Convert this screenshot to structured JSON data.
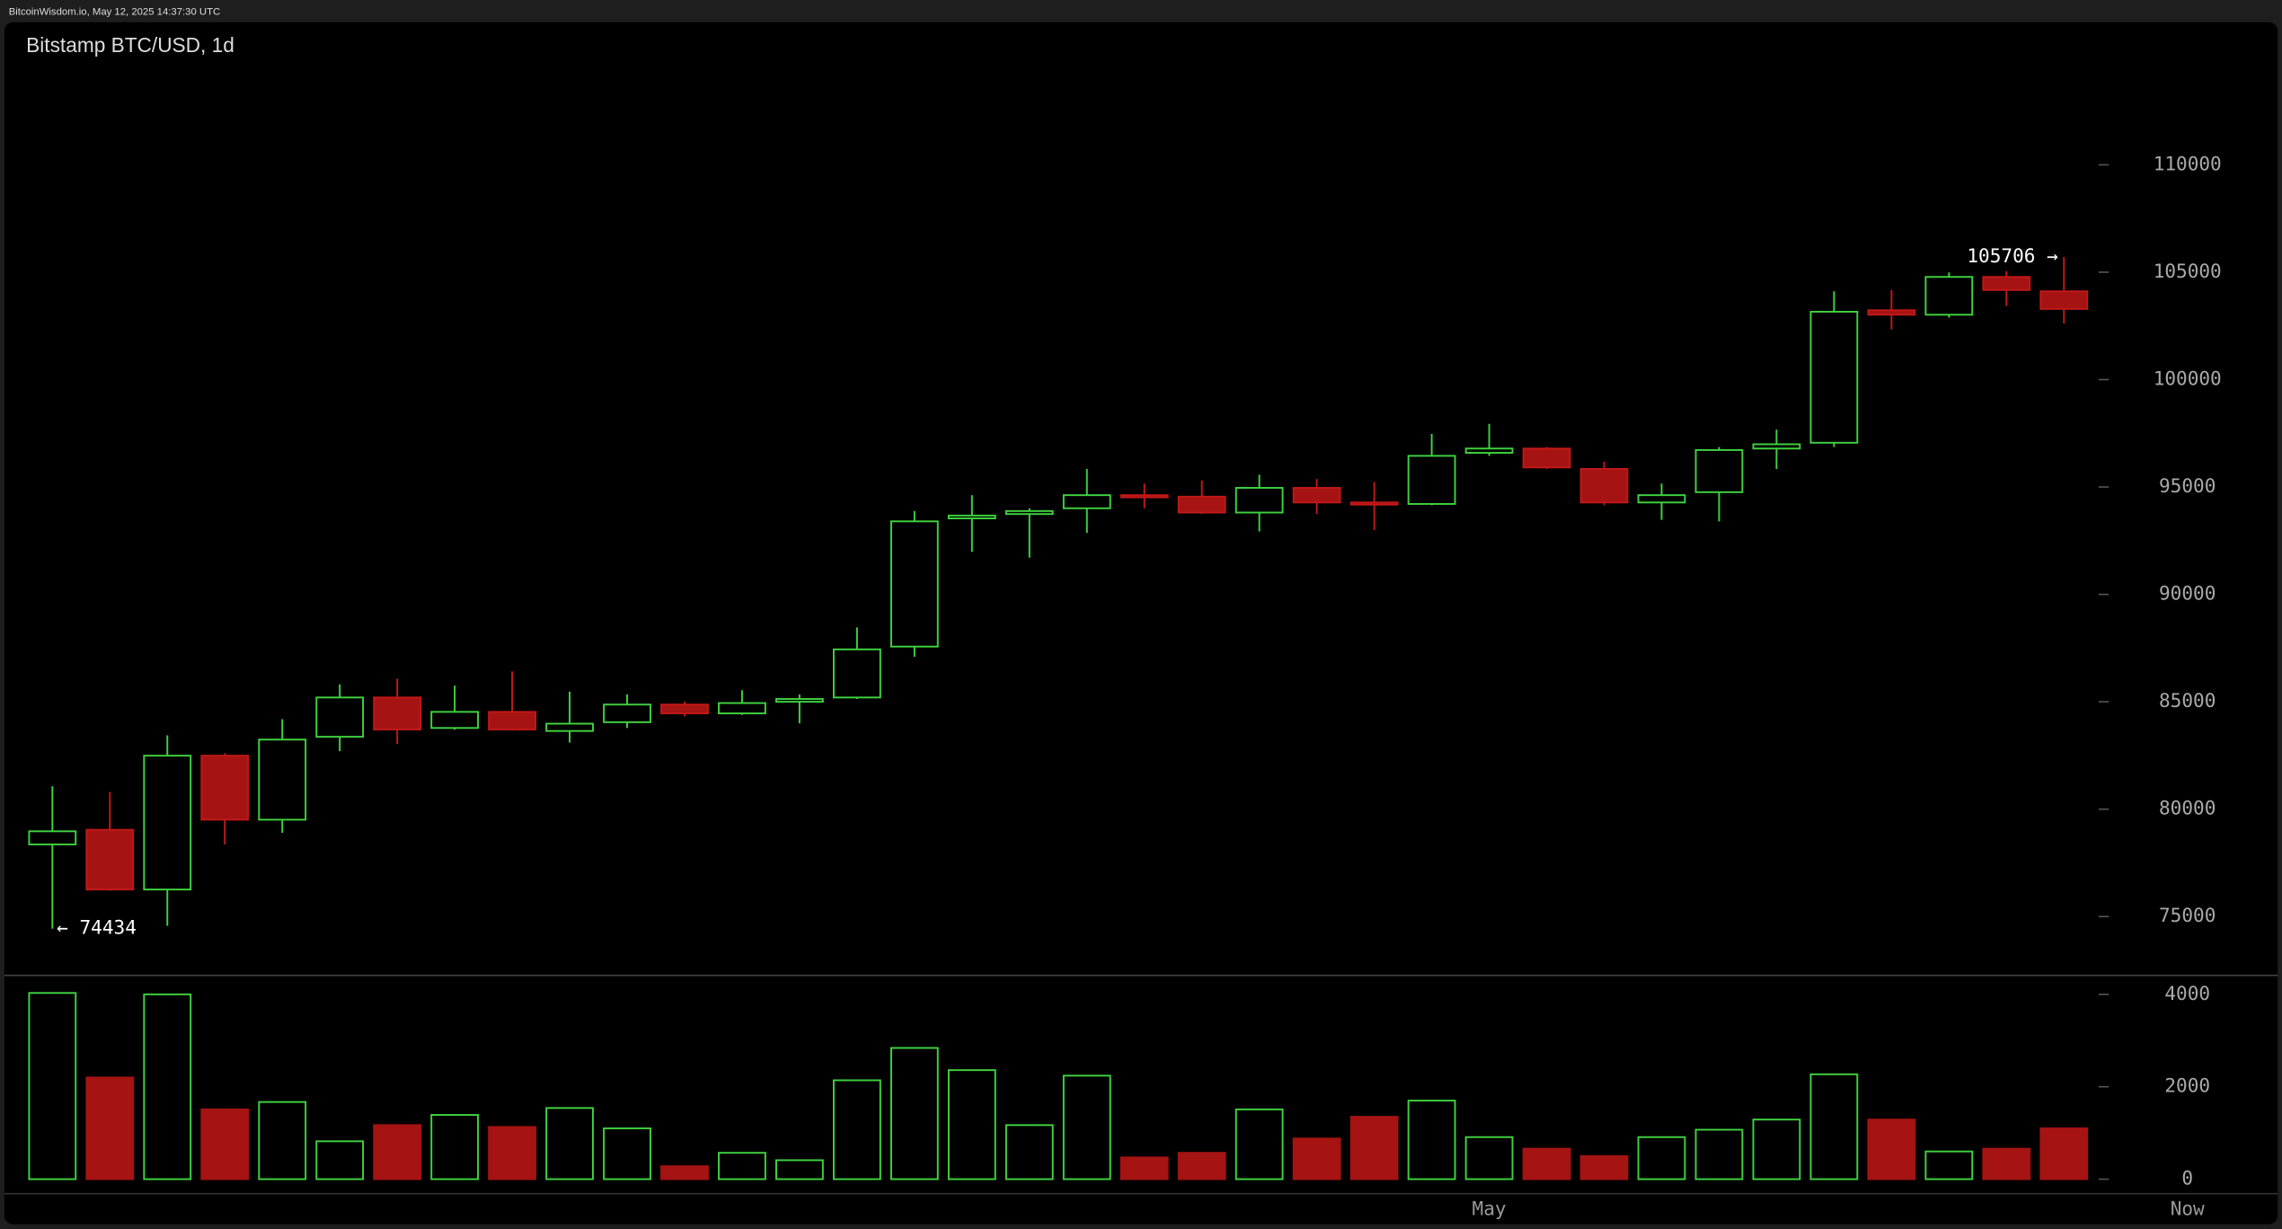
{
  "chart_data": {
    "type": "candlestick",
    "header": "BitcoinWisdom.io, May 12, 2025 14:37:30 UTC",
    "title": "Bitstamp BTC/USD, 1d",
    "categories": [
      null,
      null,
      null,
      null,
      null,
      null,
      null,
      null,
      null,
      null,
      null,
      null,
      null,
      null,
      null,
      null,
      null,
      null,
      null,
      null,
      null,
      null,
      null,
      null,
      null,
      "May",
      null,
      null,
      null,
      null,
      null,
      null,
      null,
      null,
      null,
      null
    ],
    "open": [
      78360,
      79040,
      76260,
      82490,
      79510,
      83370,
      85200,
      83780,
      84530,
      83640,
      84050,
      84870,
      84460,
      85000,
      85200,
      87570,
      93540,
      93740,
      94010,
      94620,
      94550,
      93810,
      94960,
      94280,
      94210,
      96590,
      96790,
      95840,
      94280,
      94760,
      96790,
      97060,
      103230,
      103020,
      104780,
      104110
    ],
    "high": [
      81070,
      80800,
      83440,
      82600,
      84190,
      85810,
      86080,
      85750,
      86420,
      85470,
      85340,
      85000,
      85540,
      85340,
      88460,
      93880,
      94620,
      94010,
      95840,
      95160,
      95300,
      95570,
      95370,
      95230,
      97470,
      97940,
      96860,
      96180,
      95160,
      96860,
      97670,
      104110,
      104170,
      104990,
      105050,
      105706
    ],
    "low": [
      74434,
      76200,
      74570,
      78360,
      78900,
      82700,
      83030,
      83700,
      83650,
      83100,
      83780,
      84320,
      84390,
      84000,
      85130,
      87100,
      91980,
      91710,
      92860,
      94010,
      93740,
      92930,
      93740,
      92990,
      94150,
      96450,
      95840,
      94150,
      93470,
      93400,
      95840,
      96860,
      102340,
      102890,
      103430,
      102610
    ],
    "close": [
      78970,
      76260,
      82490,
      79510,
      83240,
      85200,
      83710,
      84530,
      83710,
      83980,
      84870,
      84460,
      84940,
      85130,
      87440,
      93400,
      93670,
      93880,
      94620,
      94550,
      93810,
      94960,
      94280,
      94210,
      96450,
      96790,
      95910,
      94280,
      94620,
      96720,
      96990,
      103160,
      103020,
      104780,
      104170,
      103290
    ],
    "volume": [
      4030,
      2200,
      4000,
      1510,
      1670,
      820,
      1170,
      1390,
      1130,
      1540,
      1100,
      280,
      570,
      410,
      2140,
      2840,
      2360,
      1170,
      2240,
      470,
      570,
      1510,
      880,
      1350,
      1700,
      910,
      660,
      500,
      910,
      1070,
      1290,
      2270,
      1290,
      600,
      660,
      1100
    ],
    "up_color": "#3fd23f",
    "down_color": "#a51313",
    "ylim": [
      72260,
      116640
    ],
    "yticks": [
      75000,
      80000,
      85000,
      90000,
      95000,
      100000,
      105000,
      110000
    ],
    "vlim": [
      0,
      4410
    ],
    "vticks": [
      0,
      2000,
      4000
    ],
    "annotations": [
      {
        "value": 105706,
        "label": "105706 →"
      },
      {
        "value": 74434,
        "label": "← 74434"
      }
    ],
    "now_label": "Now"
  }
}
